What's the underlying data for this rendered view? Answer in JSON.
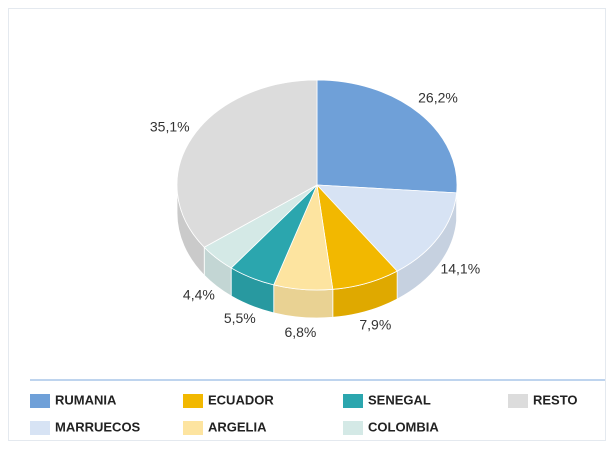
{
  "chart_data": {
    "type": "pie",
    "categories": [
      "RUMANIA",
      "MARRUECOS",
      "ECUADOR",
      "ARGELIA",
      "SENEGAL",
      "COLOMBIA",
      "RESTO"
    ],
    "values": [
      26.2,
      14.1,
      7.9,
      6.8,
      5.5,
      4.4,
      35.1
    ],
    "value_labels": [
      "26,2%",
      "14,1%",
      "7,9%",
      "6,8%",
      "5,5%",
      "4,4%",
      "35,1%"
    ],
    "colors": [
      "#6fa0d8",
      "#d7e3f4",
      "#f2b800",
      "#fde4a0",
      "#2ba6ae",
      "#d4e9e6",
      "#dcdcdc"
    ],
    "legend": "bottom"
  }
}
